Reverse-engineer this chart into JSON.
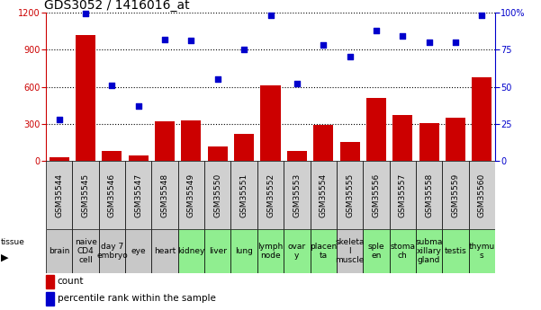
{
  "title": "GDS3052 / 1416016_at",
  "gsm_labels": [
    "GSM35544",
    "GSM35545",
    "GSM35546",
    "GSM35547",
    "GSM35548",
    "GSM35549",
    "GSM35550",
    "GSM35551",
    "GSM35552",
    "GSM35553",
    "GSM35554",
    "GSM35555",
    "GSM35556",
    "GSM35557",
    "GSM35558",
    "GSM35559",
    "GSM35560"
  ],
  "tissue_labels": [
    "brain",
    "naive\nCD4\ncell",
    "day 7\nembryо",
    "eye",
    "heart",
    "kidney",
    "liver",
    "lung",
    "lymph\nnode",
    "ovar\ny",
    "placen\nta",
    "skeleta\nl\nmuscle",
    "sple\nen",
    "stoma\nch",
    "subma\nxillary\ngland",
    "testis",
    "thymu\ns"
  ],
  "tissue_colors": [
    "#c8c8c8",
    "#c8c8c8",
    "#c8c8c8",
    "#c8c8c8",
    "#c8c8c8",
    "#90ee90",
    "#90ee90",
    "#90ee90",
    "#90ee90",
    "#90ee90",
    "#90ee90",
    "#c8c8c8",
    "#90ee90",
    "#90ee90",
    "#90ee90",
    "#90ee90",
    "#90ee90"
  ],
  "gsm_row_color": "#d0d0d0",
  "count_values": [
    30,
    1020,
    80,
    50,
    320,
    330,
    120,
    220,
    610,
    80,
    290,
    155,
    510,
    370,
    310,
    350,
    680
  ],
  "percentile_values": [
    28,
    99,
    51,
    37,
    82,
    81,
    55,
    75,
    98,
    52,
    78,
    70,
    88,
    84,
    80,
    80,
    98
  ],
  "bar_color": "#cc0000",
  "dot_color": "#0000cc",
  "left_ylim": [
    0,
    1200
  ],
  "right_ylim": [
    0,
    100
  ],
  "left_yticks": [
    0,
    300,
    600,
    900,
    1200
  ],
  "right_yticks": [
    0,
    25,
    50,
    75,
    100
  ],
  "right_yticklabels": [
    "0",
    "25",
    "50",
    "75",
    "100%"
  ],
  "background_color": "#ffffff",
  "title_fontsize": 10,
  "tick_fontsize": 7,
  "gsm_fontsize": 6.5,
  "tissue_fontsize": 6.5,
  "legend_fontsize": 7.5
}
